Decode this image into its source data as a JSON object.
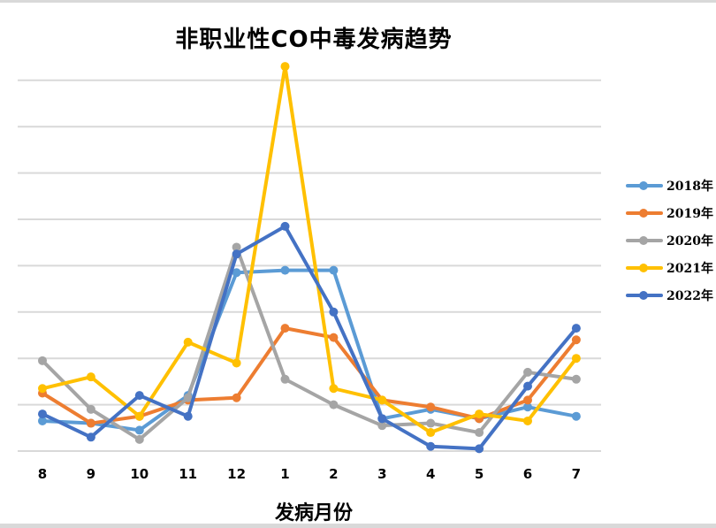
{
  "chart_data": {
    "type": "line",
    "title": "非职业性CO中毒发病趋势",
    "xlabel": "发病月份",
    "ylabel": "",
    "categories": [
      "8",
      "9",
      "10",
      "11",
      "12",
      "1",
      "2",
      "3",
      "4",
      "5",
      "6",
      "7"
    ],
    "y_axis_labels_visible": false,
    "ylim": [
      0,
      8
    ],
    "y_units_note": "values in gridline units (no y tick labels shown)",
    "grid": true,
    "legend_position": "right",
    "series": [
      {
        "name": "2018年",
        "color": "#5B9BD5",
        "values": [
          0.65,
          0.6,
          0.45,
          1.2,
          3.85,
          3.9,
          3.9,
          0.7,
          0.9,
          0.7,
          0.95,
          0.75
        ]
      },
      {
        "name": "2019年",
        "color": "#ED7D31",
        "values": [
          1.25,
          0.6,
          0.75,
          1.1,
          1.15,
          2.65,
          2.45,
          1.1,
          0.95,
          0.7,
          1.1,
          2.4
        ]
      },
      {
        "name": "2020年",
        "color": "#A5A5A5",
        "values": [
          1.95,
          0.9,
          0.25,
          1.15,
          4.4,
          1.55,
          1.0,
          0.55,
          0.6,
          0.4,
          1.7,
          1.55
        ]
      },
      {
        "name": "2021年",
        "color": "#FFC000",
        "values": [
          1.35,
          1.6,
          0.75,
          2.35,
          1.9,
          8.3,
          1.35,
          1.1,
          0.4,
          0.8,
          0.65,
          2.0
        ]
      },
      {
        "name": "2022年",
        "color": "#4472C4",
        "values": [
          0.8,
          0.3,
          1.2,
          0.75,
          4.25,
          4.85,
          3.0,
          0.7,
          0.1,
          0.05,
          1.4,
          2.65
        ]
      }
    ]
  }
}
